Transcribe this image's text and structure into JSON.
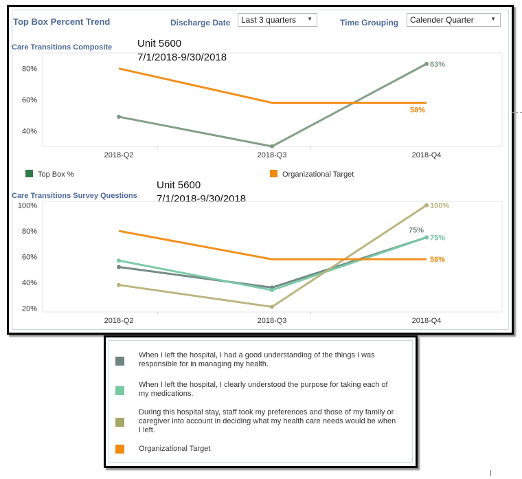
{
  "header": {
    "title": "Top Box Percent Trend",
    "discharge_label": "Discharge Date",
    "discharge_value": "Last 3 quarters",
    "grouping_label": "Time Grouping",
    "grouping_value": "Calender Quarter"
  },
  "notes": {
    "unit": "Unit 5600",
    "range": "7/1/2018-9/30/2018"
  },
  "colors": {
    "top_box": "#7d9a83",
    "target": "#f28a10",
    "q1": "#6f8580",
    "q2": "#78c8a4",
    "q3": "#b7b27a"
  },
  "chart_data": [
    {
      "type": "line",
      "title": "Care Transitions Composite",
      "categories": [
        "2018-Q2",
        "2018-Q3",
        "2018-Q4"
      ],
      "ylim": [
        30,
        90
      ],
      "yticks": [
        "80%",
        "60%",
        "40%"
      ],
      "ytick_values": [
        80,
        60,
        40
      ],
      "grid": false,
      "legend_position": "bottom",
      "series": [
        {
          "name": "Top Box %",
          "values": [
            49,
            30,
            83
          ],
          "end_label": "83%"
        },
        {
          "name": "Organizational Target",
          "values": [
            80,
            58,
            58
          ],
          "end_label": "58%"
        }
      ]
    },
    {
      "type": "line",
      "title": "Care Transitions Survey Questions",
      "categories": [
        "2018-Q2",
        "2018-Q3",
        "2018-Q4"
      ],
      "ylim": [
        17,
        103
      ],
      "yticks": [
        "100%",
        "80%",
        "60%",
        "40%",
        "20%"
      ],
      "ytick_values": [
        100,
        80,
        60,
        40,
        20
      ],
      "grid": false,
      "legend_position": "below",
      "series": [
        {
          "name": "When I left the hospital, I had a good understanding of the things I was responsible for in managing my health.",
          "values": [
            52,
            36,
            75
          ],
          "end_label": "75%"
        },
        {
          "name": "When I left the hospital, I clearly understood the purpose for taking each of my medications.",
          "values": [
            57,
            34,
            75
          ],
          "end_label": "75%"
        },
        {
          "name": "During this hospital stay, staff took my preferences and those of my family or caregiver into account in deciding what my health care needs would be when I left.",
          "values": [
            38,
            21,
            100
          ],
          "end_label": "100%"
        },
        {
          "name": "Organizational Target",
          "values": [
            80,
            58,
            58
          ],
          "end_label": "58%"
        }
      ]
    }
  ]
}
